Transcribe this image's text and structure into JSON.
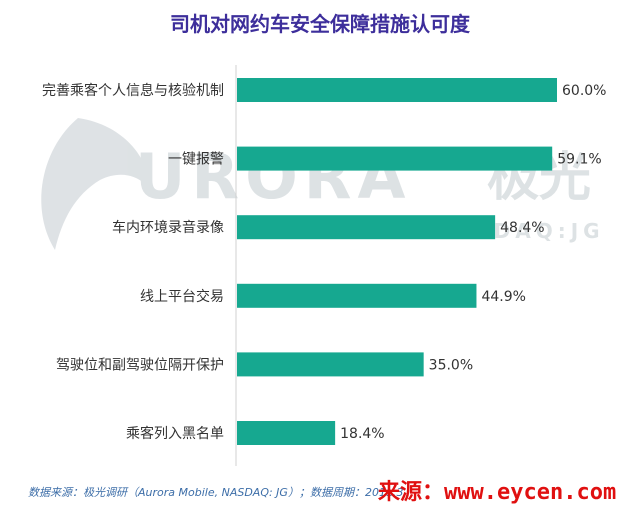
{
  "chart_data": {
    "type": "bar",
    "orientation": "horizontal",
    "title": "司机对网约车安全保障措施认可度",
    "categories": [
      "完善乘客个人信息与核验机制",
      "一键报警",
      "车内环境录音录像",
      "线上平台交易",
      "驾驶位和副驾驶位隔开保护",
      "乘客列入黑名单"
    ],
    "values": [
      60.0,
      59.1,
      48.4,
      44.9,
      35.0,
      18.4
    ],
    "value_labels": [
      "60.0%",
      "59.1%",
      "48.4%",
      "44.9%",
      "35.0%",
      "18.4%"
    ],
    "xlim": [
      0,
      60
    ],
    "grid": false,
    "legend": "none",
    "bar_color": "#16a890"
  },
  "watermark": {
    "logo_text": "URORA",
    "chinese_text": "极光",
    "sub_text": "NASDAQ:JG",
    "color": "#d8dde0"
  },
  "footer": {
    "text": "数据来源：极光调研（Aurora Mobile, NASDAQ: JG）；数据周期：201",
    "obscured_tail": "...3"
  },
  "source_stamp": "来源：www.eycen.com"
}
